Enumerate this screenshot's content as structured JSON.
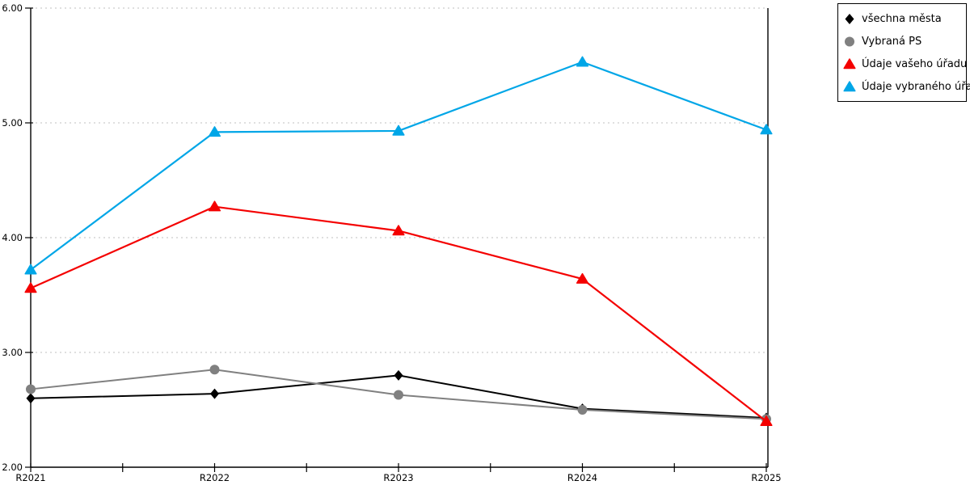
{
  "page": {
    "background": "#ffffff"
  },
  "chart_data": {
    "type": "line",
    "title": "",
    "xlabel": "",
    "ylabel": "",
    "x_categories": [
      "R2021",
      "R2022",
      "R2023",
      "R2024",
      "R2025"
    ],
    "y_tick_labels": [
      "6.00",
      "5.00",
      "4.00",
      "3.00",
      "2.00"
    ],
    "y_tick_values": [
      6.0,
      5.0,
      4.0,
      3.0,
      2.0
    ],
    "ylim": [
      2.0,
      6.0
    ],
    "grid": {
      "horizontal": true,
      "style": "dotted",
      "color": "#bfbfbf"
    },
    "axis_color": "#000000",
    "legend_position": "top-right",
    "series": [
      {
        "name": "všechna města",
        "marker": "diamond",
        "color": "#000000",
        "line_width": 2,
        "values": [
          2.6,
          2.64,
          2.8,
          2.51,
          2.43
        ]
      },
      {
        "name": "Vybraná PS",
        "marker": "circle",
        "color": "#808080",
        "line_width": 2,
        "values": [
          2.68,
          2.85,
          2.63,
          2.5,
          2.42
        ]
      },
      {
        "name": "Údaje vašeho úřadu",
        "marker": "triangle",
        "color": "#f40000",
        "line_width": 2.2,
        "values": [
          3.56,
          4.27,
          4.06,
          3.64,
          2.4
        ]
      },
      {
        "name": "Údaje vybraného úřadu",
        "marker": "triangle",
        "color": "#00a6e7",
        "line_width": 2.2,
        "values": [
          3.72,
          4.92,
          4.93,
          5.53,
          4.94
        ]
      }
    ]
  }
}
